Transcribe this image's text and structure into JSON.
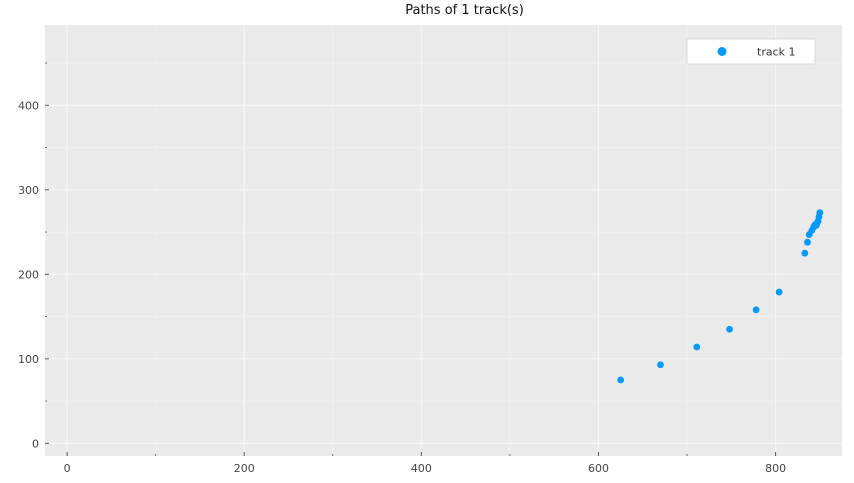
{
  "chart_data": {
    "type": "scatter",
    "title": "Paths of 1 track(s)",
    "xlabel": "",
    "ylabel": "",
    "xlim": [
      -25,
      875
    ],
    "ylim": [
      -15,
      495
    ],
    "xticks": [
      0,
      200,
      400,
      600,
      800
    ],
    "yticks": [
      0,
      100,
      200,
      300,
      400
    ],
    "xticks_minor": [
      100,
      300,
      500,
      700
    ],
    "yticks_minor": [
      50,
      150,
      250,
      350,
      450
    ],
    "grid": true,
    "legend_position": "top-right",
    "series": [
      {
        "name": "track 1",
        "color": "#009af9",
        "points": [
          {
            "x": 625,
            "y": 75
          },
          {
            "x": 670,
            "y": 93
          },
          {
            "x": 711,
            "y": 114
          },
          {
            "x": 748,
            "y": 135
          },
          {
            "x": 778,
            "y": 158
          },
          {
            "x": 804,
            "y": 179
          },
          {
            "x": 833,
            "y": 225
          },
          {
            "x": 836,
            "y": 238
          },
          {
            "x": 838,
            "y": 247
          },
          {
            "x": 841,
            "y": 252
          },
          {
            "x": 843,
            "y": 256
          },
          {
            "x": 844,
            "y": 258
          },
          {
            "x": 845,
            "y": 259
          },
          {
            "x": 846,
            "y": 258
          },
          {
            "x": 847,
            "y": 261
          },
          {
            "x": 848,
            "y": 263
          },
          {
            "x": 849,
            "y": 268
          },
          {
            "x": 850,
            "y": 273
          }
        ]
      }
    ]
  },
  "colors": {
    "background": "#ffffff",
    "plot_area": "#eaeaea",
    "grid": "#f7f7f7",
    "text": "#444444",
    "title": "#111111"
  }
}
